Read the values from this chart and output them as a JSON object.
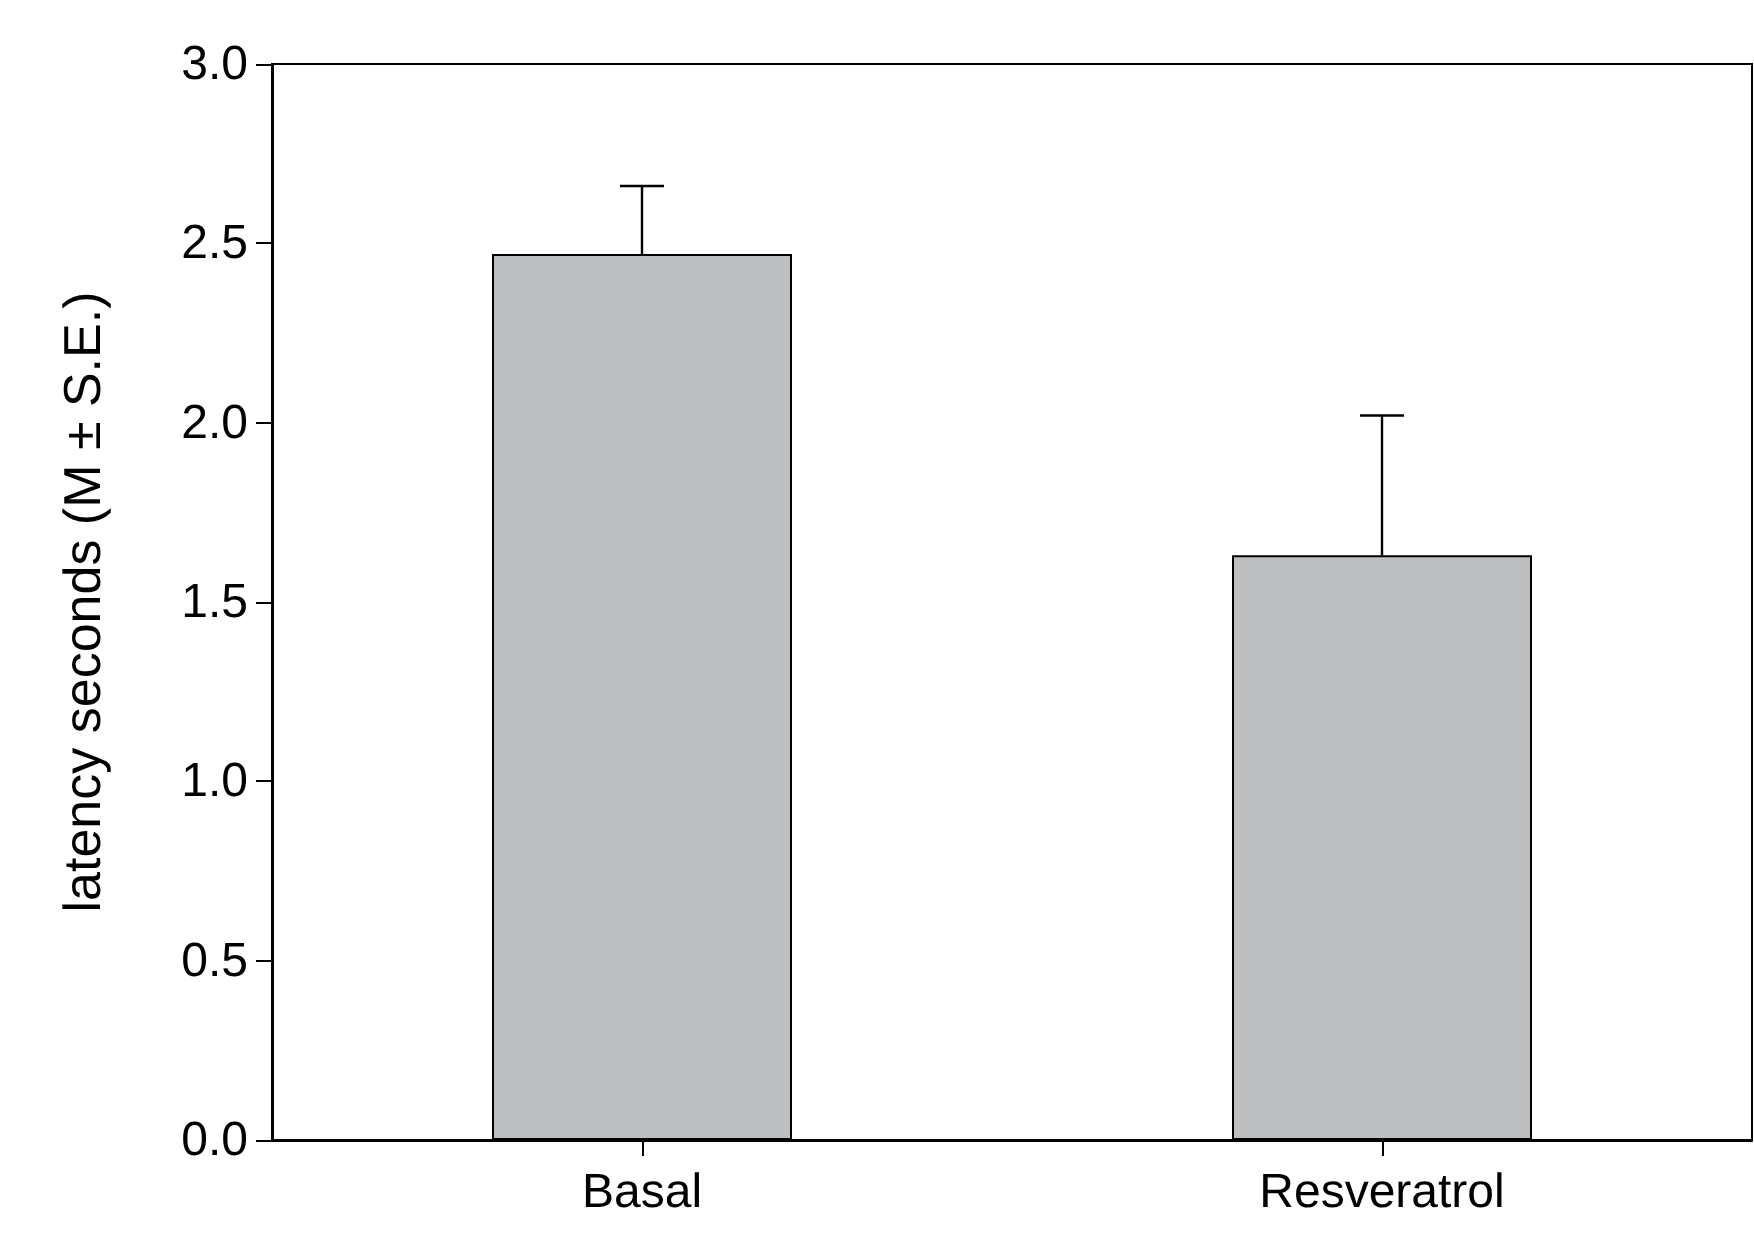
{
  "chart_data": {
    "type": "bar",
    "ylabel": "latency seconds (M ± S.E.)",
    "categories": [
      "Basal",
      "Resveratrol"
    ],
    "values": [
      2.47,
      1.63
    ],
    "errors": [
      [
        2.47,
        2.66
      ],
      [
        1.63,
        2.02
      ]
    ],
    "color": "#bcbec0",
    "ylim": [
      0,
      3
    ],
    "yticks": [
      {
        "value": 0,
        "label": "0.0"
      },
      0.5,
      {
        "value": 1,
        "label": "1.0"
      },
      1.5,
      {
        "value": 2,
        "label": "2.0"
      },
      2.5,
      {
        "value": 3,
        "label": "3.0"
      }
    ],
    "grid": false
  }
}
